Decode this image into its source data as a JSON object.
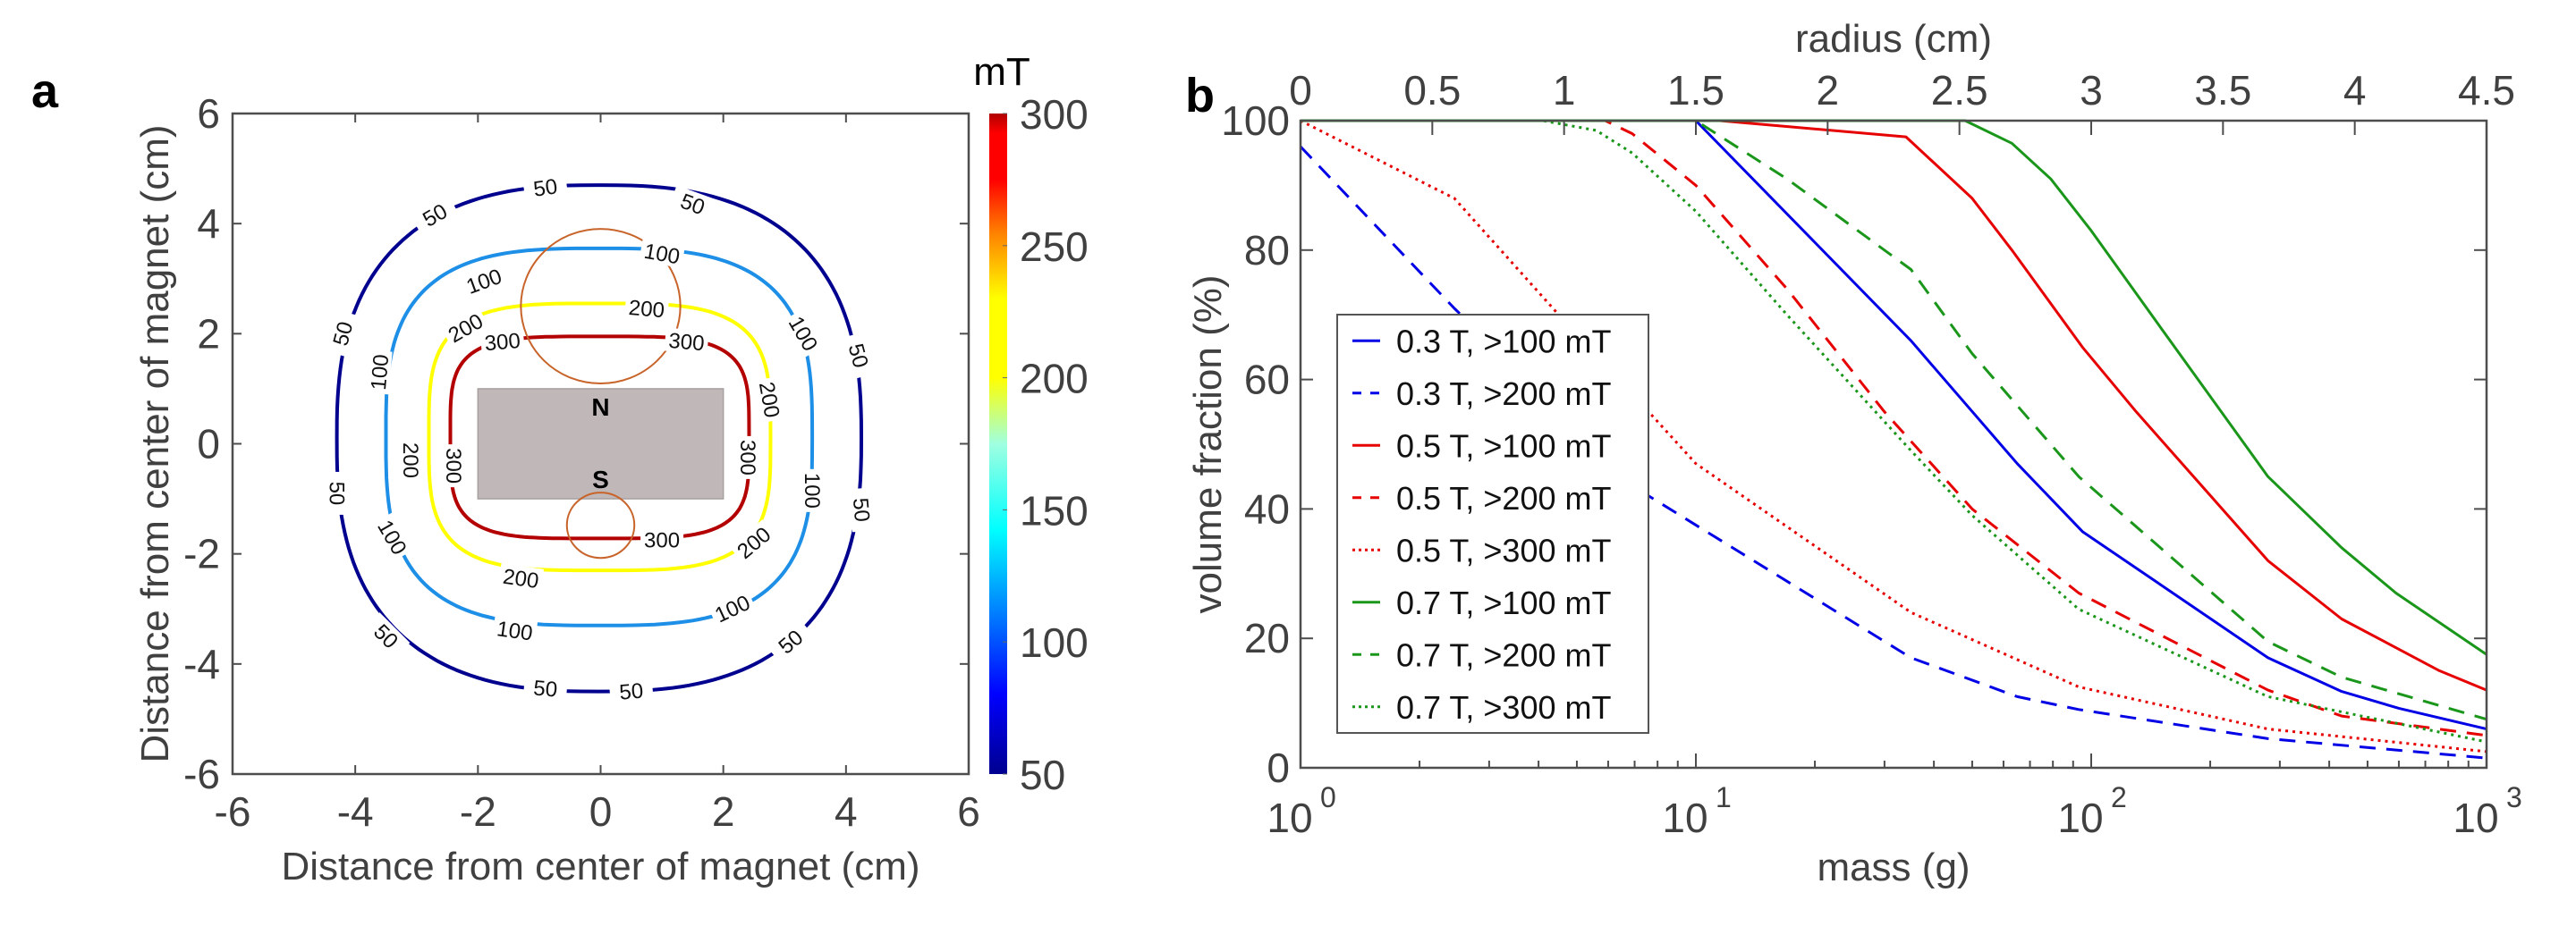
{
  "figure": {
    "panels": [
      "a",
      "b"
    ]
  },
  "chart_data": [
    {
      "id": "a",
      "type": "contour",
      "panel_label": "a",
      "title": "",
      "xlabel": "Distance from center of magnet (cm)",
      "ylabel": "Distance from center of magnet (cm)",
      "xlim": [
        -6,
        6
      ],
      "ylim": [
        -6,
        6
      ],
      "xticks": [
        -6,
        -4,
        -2,
        0,
        2,
        4,
        6
      ],
      "yticks": [
        -6,
        -4,
        -2,
        0,
        2,
        4,
        6
      ],
      "colorbar": {
        "label": "mT",
        "range": [
          50,
          300
        ],
        "ticks": [
          50,
          100,
          150,
          200,
          250,
          300
        ],
        "colormap": "jet"
      },
      "contours": [
        {
          "level": 50,
          "color": "#00008f",
          "extent": {
            "left": -4.3,
            "right": 4.25,
            "top": 4.7,
            "bottom": -4.5
          },
          "labels": [
            [
              -0.9,
              4.65,
              -8
            ],
            [
              1.5,
              4.35,
              20
            ],
            [
              -2.7,
              4.15,
              -30
            ],
            [
              -4.2,
              2.0,
              -75
            ],
            [
              4.2,
              1.6,
              75
            ],
            [
              -4.3,
              -0.9,
              90
            ],
            [
              4.25,
              -1.2,
              85
            ],
            [
              -3.5,
              -3.5,
              45
            ],
            [
              3.1,
              -3.6,
              -40
            ],
            [
              -0.9,
              -4.45,
              5
            ],
            [
              0.5,
              -4.5,
              -5
            ]
          ],
          "label_text": "50"
        },
        {
          "level": 100,
          "color": "#1e8fe6",
          "extent": {
            "left": -3.5,
            "right": 3.45,
            "top": 3.55,
            "bottom": -3.3
          },
          "labels": [
            [
              -1.9,
              2.95,
              -20
            ],
            [
              1.0,
              3.45,
              10
            ],
            [
              3.3,
              2.0,
              60
            ],
            [
              -3.6,
              1.3,
              -85
            ],
            [
              3.45,
              -0.85,
              90
            ],
            [
              -3.4,
              -1.7,
              60
            ],
            [
              -1.4,
              -3.4,
              8
            ],
            [
              2.15,
              -3.0,
              -25
            ]
          ],
          "label_text": "100"
        },
        {
          "level": 200,
          "color": "#ffff00",
          "extent": {
            "left": -2.8,
            "right": 2.77,
            "top": 2.55,
            "bottom": -2.3
          },
          "labels": [
            [
              -2.2,
              2.1,
              -30
            ],
            [
              0.75,
              2.45,
              5
            ],
            [
              2.75,
              0.8,
              80
            ],
            [
              -3.1,
              -0.3,
              90
            ],
            [
              2.5,
              -1.8,
              -40
            ],
            [
              -1.3,
              -2.45,
              8
            ]
          ],
          "label_text": "200"
        },
        {
          "level": 300,
          "color": "#b30000",
          "extent": {
            "left": -2.45,
            "right": 2.42,
            "top": 1.95,
            "bottom": -1.72
          },
          "labels": [
            [
              -1.6,
              1.85,
              -5
            ],
            [
              1.4,
              1.85,
              5
            ],
            [
              -2.4,
              -0.4,
              90
            ],
            [
              2.4,
              -0.25,
              90
            ],
            [
              1.0,
              -1.75,
              0
            ]
          ],
          "label_text": "300"
        }
      ],
      "magnet": {
        "x": [
          -2,
          2
        ],
        "y": [
          -1,
          1
        ],
        "color": "#c0b8b8",
        "north_label": "N",
        "south_label": "S"
      },
      "circles": [
        {
          "cx": 0,
          "cy": 2.5,
          "r": 1.3,
          "color": "#c8642a"
        },
        {
          "cx": 0,
          "cy": -1.48,
          "r": 0.55,
          "color": "#c8642a"
        }
      ]
    },
    {
      "id": "b",
      "type": "line",
      "panel_label": "b",
      "title": "",
      "xlabel": "mass (g)",
      "ylabel": "volume fraction (%)",
      "x2label": "radius (cm)",
      "xscale": "log",
      "xlim": [
        1,
        1000
      ],
      "ylim": [
        0,
        100
      ],
      "xticks": [
        {
          "base": "10",
          "exp": "0"
        },
        {
          "base": "10",
          "exp": "1"
        },
        {
          "base": "10",
          "exp": "2"
        },
        {
          "base": "10",
          "exp": "3"
        }
      ],
      "yticks": [
        0,
        20,
        40,
        60,
        80,
        100
      ],
      "x2ticks": [
        "0",
        "0.5",
        "1",
        "1.5",
        "2",
        "2.5",
        "3",
        "3.5",
        "4",
        "4.5"
      ],
      "x2lim": [
        0,
        4.5
      ],
      "legend": "left-middle",
      "series": [
        {
          "name": "0.3 T, >100 mT",
          "color": "#0000e6",
          "style": "solid",
          "x": [
            1,
            9.5,
            10,
            35,
            65,
            95,
            280,
            430,
            600,
            1000
          ],
          "y": [
            100,
            100,
            100,
            66,
            47,
            36.5,
            17,
            11.8,
            9.2,
            6
          ]
        },
        {
          "name": "0.3 T, >200 mT",
          "color": "#0000e6",
          "style": "dashed",
          "x": [
            1,
            2.45,
            7.6,
            35,
            65,
            93,
            280,
            1000
          ],
          "y": [
            96,
            71,
            42,
            17,
            11,
            9,
            4.5,
            1.5
          ]
        },
        {
          "name": "0.5 T, >100 mT",
          "color": "#e60000",
          "style": "solid",
          "x": [
            1,
            11.5,
            34,
            50,
            63,
            95,
            130,
            280,
            430,
            760,
            1000
          ],
          "y": [
            100,
            100,
            97.5,
            88,
            80,
            65,
            55,
            32,
            23,
            15,
            12
          ]
        },
        {
          "name": "0.5 T, >200 mT",
          "color": "#e60000",
          "style": "dashed",
          "x": [
            1,
            5.9,
            6.9,
            10,
            17,
            30,
            50,
            93,
            280,
            430,
            1000
          ],
          "y": [
            100,
            100,
            98,
            90,
            74,
            55,
            40,
            27,
            12,
            8,
            5
          ]
        },
        {
          "name": "0.5 T, >300 mT",
          "color": "#e60000",
          "style": "dotted",
          "x": [
            1,
            2.45,
            4.5,
            7.6,
            10,
            35,
            93,
            280,
            1000
          ],
          "y": [
            100,
            88,
            70,
            55,
            47,
            24,
            12.5,
            6,
            2.5
          ]
        },
        {
          "name": "0.7 T, >100 mT",
          "color": "#1a961a",
          "style": "solid",
          "x": [
            1,
            48,
            63,
            79,
            100,
            150,
            280,
            430,
            590,
            1000
          ],
          "y": [
            100,
            100,
            96.5,
            91,
            83,
            68,
            45,
            34,
            27,
            17.5
          ]
        },
        {
          "name": "0.7 T, >200 mT",
          "color": "#1a961a",
          "style": "dashed",
          "x": [
            1,
            10,
            17,
            35,
            50,
            93,
            280,
            430,
            1000
          ],
          "y": [
            100,
            100,
            91,
            77,
            64,
            45,
            19.5,
            14,
            7.5
          ]
        },
        {
          "name": "0.7 T, >300 mT",
          "color": "#1a961a",
          "style": "dotted",
          "x": [
            1,
            4.1,
            5.6,
            6.9,
            10,
            17,
            35,
            50,
            93,
            280,
            1000
          ],
          "y": [
            100,
            100,
            98.5,
            95,
            86,
            70,
            49,
            39,
            24.5,
            11,
            4
          ]
        }
      ]
    }
  ]
}
